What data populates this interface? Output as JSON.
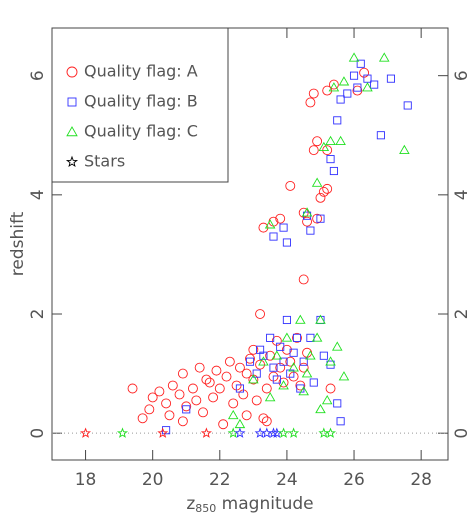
{
  "chart_data": {
    "type": "scatter",
    "ylabel": "redshift",
    "xlabel": [
      "z",
      "850",
      " magnitude"
    ],
    "xlim": [
      17,
      28.8
    ],
    "ylim": [
      -0.45,
      6.8
    ],
    "xticks": [
      18,
      20,
      22,
      24,
      26,
      28
    ],
    "yticks": [
      0,
      2,
      4,
      6
    ],
    "hline": 0,
    "legend": "upper left",
    "series": [
      {
        "name": "Quality flag: A",
        "color": "#ff2020",
        "marker": "circle",
        "x": [
          23.3,
          23.6,
          23.8,
          24.1,
          24.5,
          24.6,
          24.9,
          25.0,
          25.1,
          25.2,
          24.8,
          24.9,
          25.2,
          24.7,
          24.8,
          25.2,
          25.4,
          26.1,
          26.3,
          24.5,
          23.2,
          25.3,
          19.4,
          19.7,
          19.9,
          20.0,
          20.2,
          20.4,
          20.5,
          20.6,
          20.8,
          20.9,
          21.0,
          21.2,
          21.3,
          21.4,
          21.5,
          21.7,
          21.8,
          21.9,
          22.0,
          22.1,
          22.2,
          22.3,
          22.4,
          22.5,
          22.6,
          22.7,
          22.8,
          22.9,
          23.0,
          23.1,
          23.2,
          23.3,
          23.4,
          23.5,
          23.6,
          23.7,
          23.8,
          23.9,
          24.0,
          24.1,
          24.2,
          24.3,
          24.4,
          24.5,
          24.6,
          20.9,
          21.6,
          22.8,
          23.0,
          23.4
        ],
        "y": [
          3.45,
          3.55,
          3.6,
          4.15,
          3.7,
          3.55,
          3.6,
          3.95,
          4.05,
          4.1,
          4.75,
          4.9,
          4.75,
          5.55,
          5.7,
          5.75,
          5.85,
          5.75,
          6.05,
          2.58,
          2.0,
          0.75,
          0.75,
          0.25,
          0.4,
          0.6,
          0.7,
          0.5,
          0.3,
          0.8,
          0.65,
          1.0,
          0.45,
          0.75,
          0.55,
          1.1,
          0.35,
          0.85,
          0.6,
          1.05,
          0.75,
          0.15,
          0.95,
          1.2,
          0.5,
          0.8,
          1.1,
          0.65,
          0.3,
          1.25,
          0.9,
          0.55,
          1.15,
          0.25,
          0.75,
          1.3,
          0.95,
          1.55,
          1.1,
          0.85,
          1.4,
          1.2,
          0.95,
          1.6,
          0.8,
          1.1,
          1.35,
          0.2,
          0.9,
          1.0,
          1.4,
          0.2
        ]
      },
      {
        "name": "Quality flag: B",
        "color": "#3030ff",
        "marker": "square",
        "x": [
          23.6,
          23.9,
          24.0,
          24.6,
          24.7,
          25.0,
          25.3,
          25.4,
          25.5,
          25.6,
          25.8,
          26.0,
          26.2,
          26.4,
          26.6,
          27.1,
          27.6,
          26.8,
          26.1,
          20.4,
          21.0,
          22.6,
          22.9,
          23.1,
          23.2,
          23.3,
          23.5,
          23.6,
          23.7,
          23.8,
          23.9,
          24.0,
          24.1,
          24.2,
          24.3,
          24.4,
          24.5,
          24.7,
          25.0,
          25.1,
          25.3,
          25.5,
          25.6,
          24.8
        ],
        "y": [
          3.3,
          3.45,
          3.2,
          3.65,
          3.4,
          3.6,
          4.6,
          4.4,
          5.25,
          5.6,
          5.7,
          6.0,
          6.2,
          5.95,
          5.85,
          5.95,
          5.5,
          5.0,
          5.8,
          0.05,
          0.4,
          0.75,
          1.2,
          1.0,
          1.4,
          1.3,
          1.6,
          1.1,
          0.9,
          1.45,
          1.2,
          1.9,
          1.0,
          1.35,
          1.6,
          0.75,
          1.2,
          1.6,
          1.9,
          1.3,
          1.15,
          0.5,
          0.2,
          0.85
        ]
      },
      {
        "name": "Quality flag: C",
        "color": "#20e020",
        "marker": "triangle",
        "x": [
          23.5,
          24.6,
          25.1,
          25.3,
          25.4,
          25.7,
          26.0,
          26.4,
          26.9,
          27.5,
          25.6,
          24.9,
          22.4,
          22.6,
          23.0,
          23.3,
          23.5,
          23.7,
          23.9,
          24.0,
          24.2,
          24.4,
          24.5,
          24.7,
          24.9,
          25.0,
          25.2,
          25.3,
          25.5,
          25.7,
          25.0,
          24.6
        ],
        "y": [
          3.5,
          3.7,
          4.8,
          4.9,
          5.8,
          5.9,
          6.3,
          5.8,
          6.3,
          4.75,
          4.9,
          4.2,
          0.3,
          0.15,
          0.9,
          1.2,
          0.6,
          1.3,
          0.8,
          1.6,
          1.1,
          1.9,
          0.7,
          1.3,
          1.6,
          1.9,
          0.55,
          1.2,
          1.45,
          0.95,
          0.4,
          1.0
        ]
      },
      {
        "name": "Stars",
        "color": "#000000",
        "marker": "star",
        "point_colors": [
          "#ff2020",
          "#20e020",
          "#ff2020",
          "#ff2020",
          "#20e020",
          "#3030ff",
          "#3030ff",
          "#3030ff",
          "#3030ff",
          "#3030ff",
          "#20e020",
          "#20e020",
          "#20e020",
          "#20e020"
        ],
        "x": [
          18.0,
          19.1,
          20.3,
          21.6,
          22.4,
          22.6,
          23.2,
          23.4,
          23.6,
          23.7,
          23.9,
          24.2,
          25.1,
          25.3
        ],
        "y": [
          0,
          0,
          0,
          0,
          0,
          0,
          0,
          0,
          0,
          0,
          0,
          0,
          0,
          0
        ]
      }
    ]
  }
}
